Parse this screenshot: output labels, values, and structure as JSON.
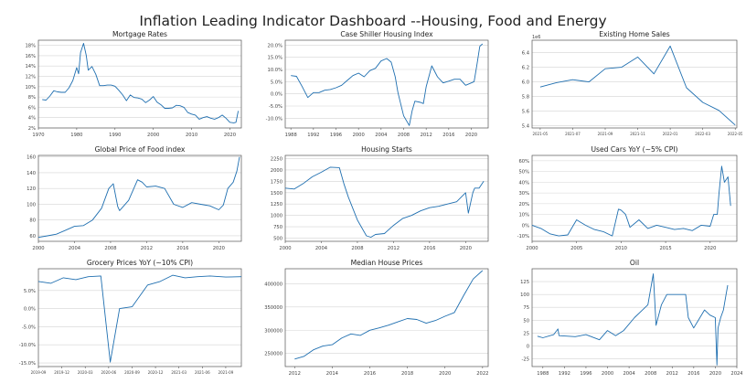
{
  "dashboard": {
    "title": "Inflation Leading Indicator Dashboard --Housing, Food and Energy"
  },
  "chart_data": [
    {
      "id": "mortgage-rates",
      "type": "line",
      "title": "Mortgage Rates",
      "xlim": [
        1970,
        2023
      ],
      "ylim": [
        2,
        19
      ],
      "xticks": [
        1970,
        1980,
        1990,
        2000,
        2010,
        2020
      ],
      "xtick_labels": [
        "1970",
        "1980",
        "1990",
        "2000",
        "2010",
        "2020"
      ],
      "yticks": [
        2,
        4,
        6,
        8,
        10,
        12,
        14,
        16,
        18
      ],
      "ytick_labels": [
        "2%",
        "4%",
        "6%",
        "8%",
        "10%",
        "12%",
        "14%",
        "16%",
        "18%"
      ],
      "grid": "y",
      "series": [
        {
          "x": [
            1971,
            1972,
            1973,
            1974,
            1975,
            1976,
            1977,
            1978,
            1979,
            1980,
            1980.5,
            1981,
            1981.8,
            1982.5,
            1983,
            1984,
            1985,
            1986,
            1987,
            1988,
            1989,
            1990,
            1991,
            1992,
            1993,
            1994,
            1995,
            1996,
            1997,
            1998,
            1999,
            2000,
            2001,
            2002,
            2003,
            2004,
            2005,
            2006,
            2007,
            2008,
            2009,
            2010,
            2011,
            2012,
            2013,
            2014,
            2015,
            2016,
            2017,
            2018,
            2019,
            2020,
            2021,
            2021.6,
            2022.2
          ],
          "y": [
            7.5,
            7.4,
            8.2,
            9.2,
            9.0,
            8.9,
            8.9,
            9.8,
            11.2,
            13.7,
            12.5,
            16.6,
            18.4,
            16.0,
            13.2,
            13.9,
            12.4,
            10.2,
            10.2,
            10.3,
            10.3,
            10.1,
            9.3,
            8.4,
            7.3,
            8.4,
            7.9,
            7.8,
            7.6,
            6.9,
            7.4,
            8.1,
            7.0,
            6.5,
            5.8,
            5.8,
            5.9,
            6.4,
            6.3,
            6.0,
            5.0,
            4.7,
            4.5,
            3.7,
            4.0,
            4.2,
            3.9,
            3.7,
            4.0,
            4.5,
            3.9,
            3.1,
            3.0,
            3.1,
            5.3
          ]
        }
      ]
    },
    {
      "id": "case-shiller",
      "type": "line",
      "title": "Case Shiller Housing Index",
      "xlim": [
        1987,
        2023
      ],
      "ylim": [
        -14,
        22
      ],
      "xticks": [
        1988,
        1992,
        1996,
        2000,
        2004,
        2008,
        2012,
        2016,
        2020
      ],
      "xtick_labels": [
        "1988",
        "1992",
        "1996",
        "2000",
        "2004",
        "2008",
        "2012",
        "2016",
        "2020"
      ],
      "yticks": [
        -10,
        -5,
        0,
        5,
        10,
        15,
        20
      ],
      "ytick_labels": [
        "-10.0%",
        "-5.0%",
        "0.0%",
        "5.0%",
        "10.0%",
        "15.0%",
        "20.0%"
      ],
      "grid": "y",
      "series": [
        {
          "x": [
            1988,
            1989,
            1990,
            1991,
            1992,
            1993,
            1994,
            1995,
            1996,
            1997,
            1998,
            1999,
            2000,
            2001,
            2002,
            2003,
            2004,
            2005,
            2005.8,
            2006.5,
            2007,
            2008,
            2009,
            2009.5,
            2010,
            2011,
            2011.5,
            2012,
            2013,
            2014,
            2015,
            2016,
            2017,
            2018,
            2019,
            2020,
            2020.5,
            2021,
            2021.5,
            2022
          ],
          "y": [
            7.5,
            7.2,
            3.0,
            -1.5,
            0.5,
            0.5,
            1.5,
            1.8,
            2.5,
            3.5,
            5.5,
            7.5,
            8.5,
            7.0,
            9.5,
            10.5,
            13.5,
            14.5,
            13.0,
            7.0,
            0.5,
            -9.0,
            -13.0,
            -7.0,
            -3.0,
            -3.5,
            -4.0,
            3.0,
            11.5,
            7.0,
            4.5,
            5.2,
            6.0,
            6.0,
            3.5,
            4.5,
            5.0,
            12.0,
            19.5,
            20.5
          ]
        }
      ]
    },
    {
      "id": "existing-home-sales",
      "type": "line",
      "title": "Existing Home Sales",
      "xlim": [
        0,
        12.6
      ],
      "ylim": [
        5.37,
        6.57
      ],
      "xticks": [
        0.5,
        2.5,
        4.5,
        6.5,
        8.5,
        10.5,
        12.5
      ],
      "xtick_labels": [
        "2021-05",
        "2021-07",
        "2021-09",
        "2021-11",
        "2022-01",
        "2022-03",
        "2022-05"
      ],
      "yticks": [
        5.4,
        5.6,
        5.8,
        6.0,
        6.2,
        6.4
      ],
      "ytick_labels": [
        "5.4",
        "5.6",
        "5.8",
        "6.0",
        "6.2",
        "6.4"
      ],
      "top_label": "1e6",
      "grid": "y",
      "series": [
        {
          "x": [
            0.5,
            1.5,
            2.5,
            3.5,
            4.5,
            5.5,
            6.5,
            7.5,
            8.5,
            9.5,
            10.5,
            11.5,
            12.5
          ],
          "y": [
            5.93,
            5.99,
            6.03,
            6.0,
            6.18,
            6.2,
            6.34,
            6.11,
            6.49,
            5.92,
            5.72,
            5.61,
            5.41
          ]
        }
      ]
    },
    {
      "id": "food-price-index",
      "type": "line",
      "title": "Global Price of Food index",
      "xlim": [
        2000,
        2022.5
      ],
      "ylim": [
        53,
        162
      ],
      "xticks": [
        2000,
        2004,
        2008,
        2012,
        2016,
        2020
      ],
      "xtick_labels": [
        "2000",
        "2004",
        "2008",
        "2012",
        "2016",
        "2020"
      ],
      "yticks": [
        60,
        80,
        100,
        120,
        140,
        160
      ],
      "ytick_labels": [
        "60",
        "80",
        "100",
        "120",
        "140",
        "160"
      ],
      "grid": "y",
      "series": [
        {
          "x": [
            2000,
            2001,
            2002,
            2003,
            2004,
            2005,
            2006,
            2007,
            2007.8,
            2008.3,
            2008.8,
            2009,
            2010,
            2011,
            2011.5,
            2012,
            2013,
            2014,
            2015,
            2016,
            2017,
            2018,
            2019,
            2020,
            2020.5,
            2021,
            2021.6,
            2022,
            2022.3
          ],
          "y": [
            58,
            60,
            62,
            67,
            72,
            73,
            80,
            95,
            120,
            126,
            97,
            92,
            105,
            131,
            128,
            122,
            123,
            120,
            100,
            96,
            102,
            100,
            98,
            93,
            99,
            120,
            128,
            142,
            160
          ]
        }
      ]
    },
    {
      "id": "housing-starts",
      "type": "line",
      "title": "Housing Starts",
      "xlim": [
        2000,
        2022.5
      ],
      "ylim": [
        430,
        2320
      ],
      "xticks": [
        2000,
        2004,
        2008,
        2012,
        2016,
        2020
      ],
      "xtick_labels": [
        "2000",
        "2004",
        "2008",
        "2012",
        "2016",
        "2020"
      ],
      "yticks": [
        500,
        750,
        1000,
        1250,
        1500,
        1750,
        2000,
        2250
      ],
      "ytick_labels": [
        "500",
        "750",
        "1000",
        "1250",
        "1500",
        "1750",
        "2000",
        "2250"
      ],
      "grid": "y",
      "series": [
        {
          "x": [
            2000,
            2001,
            2002,
            2003,
            2004,
            2005,
            2006,
            2006.5,
            2007,
            2008,
            2009,
            2009.5,
            2010,
            2011,
            2012,
            2013,
            2014,
            2015,
            2016,
            2017,
            2018,
            2019,
            2020,
            2020.3,
            2020.8,
            2021,
            2021.5,
            2022
          ],
          "y": [
            1600,
            1580,
            1700,
            1850,
            1950,
            2060,
            2050,
            1700,
            1400,
            900,
            550,
            520,
            580,
            600,
            780,
            930,
            1000,
            1100,
            1170,
            1200,
            1250,
            1300,
            1500,
            1050,
            1500,
            1600,
            1600,
            1750
          ]
        }
      ]
    },
    {
      "id": "used-cars",
      "type": "line",
      "title": "Used Cars YoY (~5% CPI)",
      "xlim": [
        2000,
        2023
      ],
      "ylim": [
        -15,
        65
      ],
      "xticks": [
        2000,
        2005,
        2010,
        2015,
        2020
      ],
      "xtick_labels": [
        "2000",
        "2005",
        "2010",
        "2015",
        "2020"
      ],
      "yticks": [
        -10,
        0,
        10,
        20,
        30,
        40,
        50,
        60
      ],
      "ytick_labels": [
        "-10%",
        "0%",
        "10%",
        "20%",
        "30%",
        "40%",
        "50%",
        "60%"
      ],
      "grid": "y",
      "series": [
        {
          "x": [
            2000,
            2001,
            2002,
            2003,
            2004,
            2005,
            2006,
            2007,
            2008,
            2009,
            2009.7,
            2010,
            2010.5,
            2011,
            2012,
            2013,
            2014,
            2015,
            2016,
            2017,
            2018,
            2019,
            2020,
            2020.4,
            2020.8,
            2021,
            2021.3,
            2021.6,
            2022,
            2022.3
          ],
          "y": [
            0,
            -3,
            -8,
            -10,
            -9,
            5,
            0,
            -4,
            -6,
            -10,
            15,
            14,
            10,
            -2,
            5,
            -3,
            0,
            -2,
            -4,
            -3,
            -5,
            0,
            -1,
            10,
            10,
            30,
            55,
            40,
            45,
            18
          ]
        }
      ]
    },
    {
      "id": "grocery-prices",
      "type": "line",
      "title": "Grocery Prices YoY (~10% CPI)",
      "xlim": [
        0,
        13
      ],
      "ylim": [
        -16,
        11
      ],
      "xticks": [
        0,
        1.5,
        3,
        4.5,
        6,
        7.5,
        9,
        10.5,
        12
      ],
      "xtick_labels": [
        "2019-09",
        "2019-12",
        "2020-03",
        "2020-06",
        "2020-09",
        "2020-12",
        "2021-03",
        "2021-06",
        "2021-09"
      ],
      "yticks": [
        -15,
        -10,
        -5,
        0,
        5
      ],
      "ytick_labels": [
        "-15.0%",
        "-10.0%",
        "-5.0%",
        "0.0%",
        "5.0%"
      ],
      "grid": "y",
      "series": [
        {
          "x": [
            0,
            0.8,
            1.6,
            2.4,
            3.2,
            4.0,
            4.6,
            5.2,
            6.0,
            7.0,
            7.8,
            8.6,
            9.4,
            10.2,
            11.0,
            12.0,
            13.0
          ],
          "y": [
            7.5,
            7.0,
            8.5,
            8.0,
            8.8,
            9.0,
            -14.8,
            0,
            0.5,
            6.5,
            7.5,
            9.2,
            8.5,
            8.8,
            9.0,
            8.7,
            8.8
          ]
        }
      ]
    },
    {
      "id": "median-house-prices",
      "type": "line",
      "title": "Median House Prices",
      "xlim": [
        2011.5,
        2022.3
      ],
      "ylim": [
        222000,
        432000
      ],
      "xticks": [
        2012,
        2014,
        2016,
        2018,
        2020,
        2022
      ],
      "xtick_labels": [
        "2012",
        "2014",
        "2016",
        "2018",
        "2020",
        "2022"
      ],
      "yticks": [
        250000,
        300000,
        350000,
        400000
      ],
      "ytick_labels": [
        "250000",
        "300000",
        "350000",
        "400000"
      ],
      "grid": "y",
      "series": [
        {
          "x": [
            2012,
            2012.5,
            2013,
            2013.5,
            2014,
            2014.5,
            2015,
            2015.5,
            2016,
            2016.5,
            2017,
            2017.5,
            2018,
            2018.5,
            2019,
            2019.5,
            2020,
            2020.5,
            2021,
            2021.5,
            2022
          ],
          "y": [
            238000,
            244000,
            258000,
            266000,
            269000,
            283000,
            292000,
            289000,
            300000,
            305000,
            311000,
            318000,
            325000,
            323000,
            315000,
            321000,
            330000,
            338000,
            375000,
            410000,
            428000
          ]
        }
      ]
    },
    {
      "id": "oil",
      "type": "line",
      "title": "Oil",
      "xlim": [
        1986,
        2024
      ],
      "ylim": [
        -40,
        150
      ],
      "xticks": [
        1988,
        1992,
        1996,
        2000,
        2004,
        2008,
        2012,
        2016,
        2020,
        2024
      ],
      "xtick_labels": [
        "1988",
        "1992",
        "1996",
        "2000",
        "2004",
        "2008",
        "2012",
        "2016",
        "2020",
        "2024"
      ],
      "yticks": [
        -25,
        0,
        25,
        50,
        75,
        100,
        125
      ],
      "ytick_labels": [
        "-25",
        "0",
        "25",
        "50",
        "75",
        "100",
        "125"
      ],
      "grid": "y",
      "series": [
        {
          "x": [
            1987,
            1988,
            1990,
            1990.8,
            1991,
            1994,
            1996,
            1998.5,
            2000,
            2001.5,
            2003,
            2005,
            2006.5,
            2007.5,
            2008.5,
            2009,
            2010,
            2011,
            2013,
            2014.5,
            2015,
            2016,
            2018,
            2019,
            2020,
            2020.3,
            2020.5,
            2021,
            2021.5,
            2022,
            2022.3
          ],
          "y": [
            19,
            16,
            22,
            33,
            20,
            18,
            22,
            12,
            30,
            20,
            30,
            55,
            70,
            80,
            140,
            40,
            80,
            100,
            100,
            100,
            55,
            35,
            70,
            60,
            55,
            -37,
            35,
            55,
            70,
            100,
            118
          ]
        }
      ]
    }
  ]
}
